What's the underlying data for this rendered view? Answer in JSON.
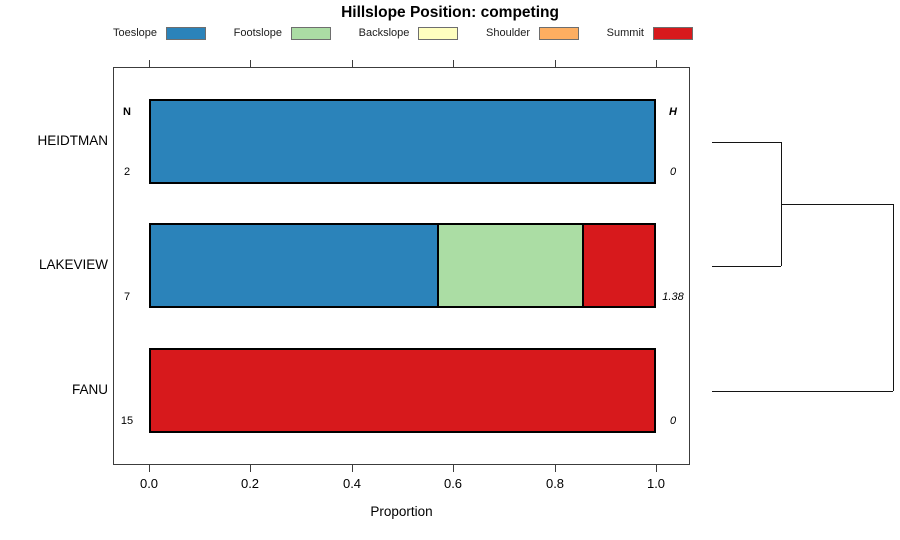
{
  "title": "Hillslope Position: competing",
  "legend": [
    {
      "label": "Toeslope",
      "color": "#2B83BA"
    },
    {
      "label": "Footslope",
      "color": "#ABDDA4"
    },
    {
      "label": "Backslope",
      "color": "#FFFFBF"
    },
    {
      "label": "Shoulder",
      "color": "#FDAE61"
    },
    {
      "label": "Summit",
      "color": "#D7191C"
    }
  ],
  "table": {
    "n_header": "N",
    "h_header": "H"
  },
  "rows": [
    {
      "name": "HEIDTMAN",
      "n": "2",
      "h": "0"
    },
    {
      "name": "LAKEVIEW",
      "n": "7",
      "h": "1.38"
    },
    {
      "name": "FANU",
      "n": "15",
      "h": "0"
    }
  ],
  "x_axis": {
    "label": "Proportion",
    "ticks": [
      "0.0",
      "0.2",
      "0.4",
      "0.6",
      "0.8",
      "1.0"
    ]
  },
  "chart_data": {
    "type": "bar",
    "orientation": "horizontal",
    "stacked": true,
    "title": "Hillslope Position: competing",
    "xlabel": "Proportion",
    "xlim": [
      0,
      1
    ],
    "x_ticks": [
      0,
      0.2,
      0.4,
      0.6,
      0.8,
      1.0
    ],
    "grid": false,
    "legend_position": "top",
    "categories": [
      "HEIDTMAN",
      "LAKEVIEW",
      "FANU"
    ],
    "sample_sizes": [
      2,
      7,
      15
    ],
    "shannon_entropy": [
      0,
      1.38,
      0
    ],
    "series": [
      {
        "name": "Toeslope",
        "color": "#2B83BA",
        "values": [
          1,
          0.5714,
          0
        ]
      },
      {
        "name": "Footslope",
        "color": "#ABDDA4",
        "values": [
          0,
          0.2857,
          0
        ]
      },
      {
        "name": "Backslope",
        "color": "#FFFFBF",
        "values": [
          0,
          0,
          0
        ]
      },
      {
        "name": "Shoulder",
        "color": "#FDAE61",
        "values": [
          0,
          0,
          0
        ]
      },
      {
        "name": "Summit",
        "color": "#D7191C",
        "values": [
          0,
          0.1429,
          1
        ]
      }
    ],
    "dendrogram": {
      "leaves": [
        "HEIDTMAN",
        "LAKEVIEW",
        "FANU"
      ],
      "merges": [
        {
          "children": [
            "HEIDTMAN",
            "LAKEVIEW"
          ],
          "height": 0.38
        },
        {
          "children": [
            "merge0",
            "FANU"
          ],
          "height": 1.0
        }
      ]
    }
  }
}
